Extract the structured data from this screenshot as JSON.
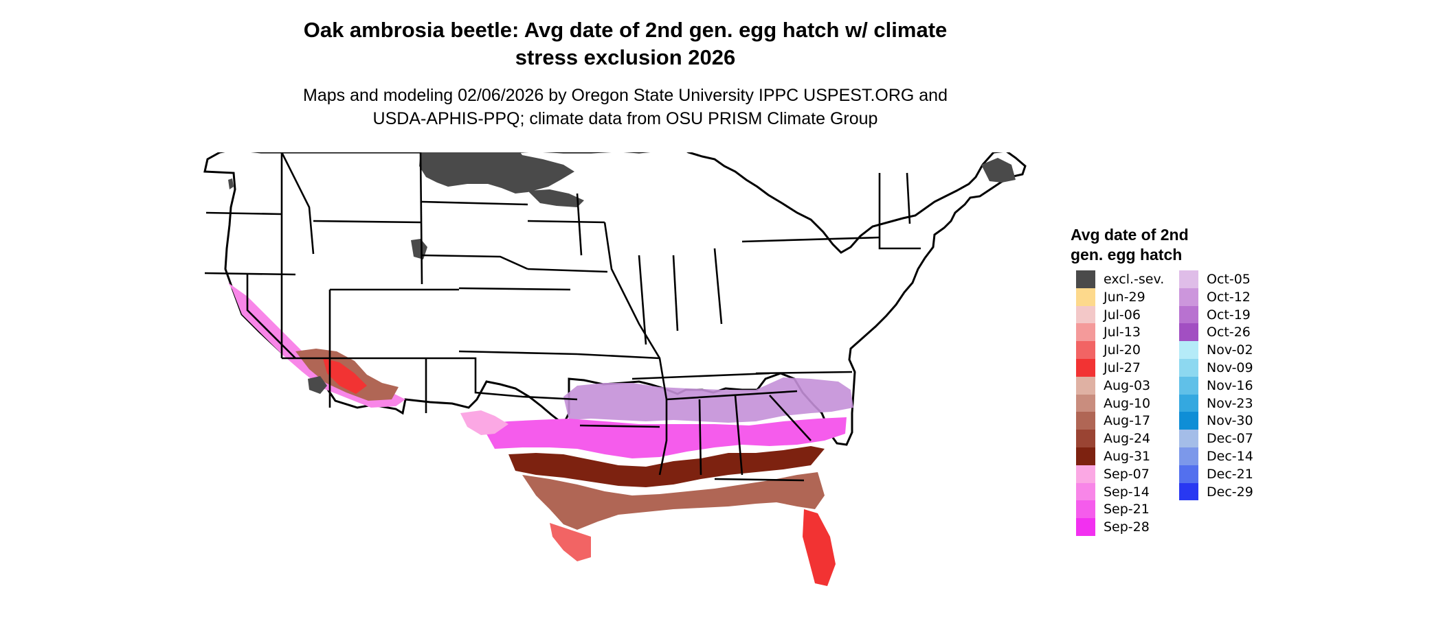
{
  "header": {
    "title_line1": "Oak ambrosia beetle: Avg date of 2nd gen. egg hatch w/ climate",
    "title_line2": "stress exclusion 2026",
    "subtitle_line1": "Maps and modeling 02/06/2026 by Oregon State University IPPC USPEST.ORG and",
    "subtitle_line2": "USDA-APHIS-PPQ; climate data from OSU PRISM Climate Group"
  },
  "legend": {
    "title_line1": "Avg date of 2nd",
    "title_line2": "gen. egg hatch",
    "items": [
      {
        "label": "excl.-sev.",
        "color": "#4a4a4a"
      },
      {
        "label": "Jun-29",
        "color": "#fdd98c"
      },
      {
        "label": "Jul-06",
        "color": "#f3c8c8"
      },
      {
        "label": "Jul-13",
        "color": "#f49a9a"
      },
      {
        "label": "Jul-20",
        "color": "#f26464"
      },
      {
        "label": "Jul-27",
        "color": "#f23333"
      },
      {
        "label": "Aug-03",
        "color": "#dfb1a3"
      },
      {
        "label": "Aug-10",
        "color": "#c98d7e"
      },
      {
        "label": "Aug-17",
        "color": "#b06655"
      },
      {
        "label": "Aug-24",
        "color": "#9a4433"
      },
      {
        "label": "Aug-31",
        "color": "#7d2210"
      },
      {
        "label": "Sep-07",
        "color": "#fba8e4"
      },
      {
        "label": "Sep-14",
        "color": "#f886e8"
      },
      {
        "label": "Sep-21",
        "color": "#f55cec"
      },
      {
        "label": "Sep-28",
        "color": "#f230f0"
      },
      {
        "label": "Oct-05",
        "color": "#dfbde8"
      },
      {
        "label": "Oct-12",
        "color": "#cc96dc"
      },
      {
        "label": "Oct-19",
        "color": "#b872d0"
      },
      {
        "label": "Oct-26",
        "color": "#a24fc2"
      },
      {
        "label": "Nov-02",
        "color": "#b5ebf8"
      },
      {
        "label": "Nov-09",
        "color": "#8dd8f0"
      },
      {
        "label": "Nov-16",
        "color": "#60c0e8"
      },
      {
        "label": "Nov-23",
        "color": "#34a8e0"
      },
      {
        "label": "Nov-30",
        "color": "#0f8ed6"
      },
      {
        "label": "Dec-07",
        "color": "#a4bde8"
      },
      {
        "label": "Dec-14",
        "color": "#7c98ea"
      },
      {
        "label": "Dec-21",
        "color": "#5370ee"
      },
      {
        "label": "Dec-29",
        "color": "#2838f2"
      }
    ]
  },
  "map": {
    "region": "Contiguous United States",
    "boundaries": "state borders",
    "background_color": "#ffffff",
    "boundary_color": "#000000"
  }
}
